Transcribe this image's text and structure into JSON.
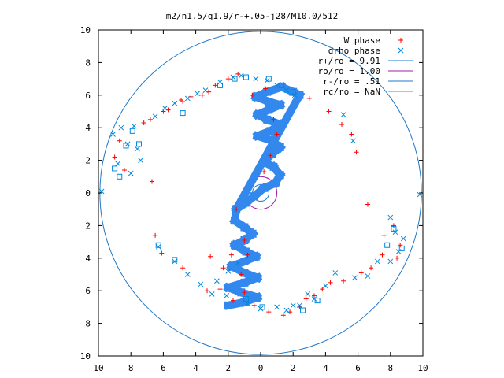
{
  "chart_data": {
    "type": "scatter",
    "title": "m2/n1.5/q1.9/r-+.05-j28/M10.0/512",
    "xlim": [
      -10,
      10
    ],
    "ylim": [
      -10,
      10
    ],
    "x_ticks": [
      -10,
      -8,
      -6,
      -4,
      -2,
      0,
      2,
      4,
      6,
      8,
      10
    ],
    "y_ticks": [
      -10,
      -8,
      -6,
      -4,
      -2,
      0,
      2,
      4,
      6,
      8,
      10
    ],
    "x_tick_labels": [
      "10",
      "8",
      "6",
      "4",
      "2",
      "0",
      "2",
      "4",
      "6",
      "8",
      "10"
    ],
    "y_tick_labels": [
      "10",
      "8",
      "6",
      "4",
      "2",
      "0",
      "2",
      "4",
      "6",
      "8",
      "10"
    ],
    "grid": false,
    "legend_position": "top-right",
    "colors": {
      "w_phase": "#ff0000",
      "drho_phase": "#0088dd",
      "r_plus": "#1e78c8",
      "r_o": "#a020a0",
      "r_minus": "#1e78c8",
      "r_c": "#00b0b0"
    },
    "legend": [
      {
        "label": "W phase",
        "marker": "plus",
        "color": "#ff0000"
      },
      {
        "label": "drho phase",
        "marker": "x",
        "color": "#0088dd"
      },
      {
        "label": "r+/ro = 9.91",
        "marker": "line",
        "color": "#1e78c8"
      },
      {
        "label": "ro/ro = 1.00",
        "marker": "line",
        "color": "#a020a0"
      },
      {
        "label": "r-/ro = .51",
        "marker": "line",
        "color": "#1e78c8"
      },
      {
        "label": "rc/ro = NaN",
        "marker": "line",
        "color": "#00b0b0"
      }
    ],
    "circles": [
      {
        "name": "r+/ro",
        "radius": 9.91
      },
      {
        "name": "ro/ro",
        "radius": 1.0
      },
      {
        "name": "r-/ro",
        "radius": 0.51
      }
    ],
    "series": [
      {
        "name": "W phase",
        "marker": "plus",
        "points": [
          [
            -6.7,
            0.7
          ],
          [
            -6.5,
            -2.6
          ],
          [
            -6.1,
            -3.7
          ],
          [
            -4.8,
            -4.6
          ],
          [
            -3.3,
            -6.0
          ],
          [
            -3.1,
            -3.9
          ],
          [
            -3.2,
            6.2
          ],
          [
            -6.0,
            5.0
          ],
          [
            -4.8,
            5.6
          ],
          [
            3.0,
            5.8
          ],
          [
            4.2,
            5.0
          ],
          [
            5.0,
            4.2
          ],
          [
            5.6,
            3.6
          ],
          [
            5.9,
            2.5
          ],
          [
            6.6,
            -0.7
          ],
          [
            2.8,
            -6.5
          ],
          [
            1.8,
            -7.3
          ],
          [
            5.1,
            -5.4
          ],
          [
            -0.5,
            6.0
          ],
          [
            0.3,
            6.4
          ],
          [
            0.8,
            4.5
          ],
          [
            1.0,
            3.6
          ],
          [
            0.6,
            2.3
          ],
          [
            0.2,
            1.3
          ],
          [
            -1.5,
            -1.0
          ],
          [
            -1.0,
            -2.9
          ],
          [
            -0.8,
            -3.8
          ],
          [
            -1.2,
            -5.0
          ],
          [
            -1.0,
            -6.1
          ],
          [
            -0.4,
            -6.9
          ],
          [
            -9.0,
            2.2
          ],
          [
            -8.7,
            3.2
          ],
          [
            -8.4,
            1.4
          ],
          [
            -7.2,
            4.3
          ],
          [
            -6.8,
            4.5
          ],
          [
            -5.7,
            5.1
          ],
          [
            -4.9,
            5.7
          ],
          [
            -4.3,
            5.9
          ],
          [
            -3.6,
            6.0
          ],
          [
            -2.8,
            6.6
          ],
          [
            -2.0,
            7.0
          ],
          [
            -1.4,
            7.3
          ],
          [
            7.6,
            -2.6
          ],
          [
            8.2,
            -2.0
          ],
          [
            8.6,
            -3.2
          ],
          [
            8.4,
            -4.0
          ],
          [
            7.5,
            -3.8
          ],
          [
            6.8,
            -4.6
          ],
          [
            6.2,
            -4.9
          ],
          [
            4.3,
            -5.5
          ],
          [
            3.8,
            -5.9
          ],
          [
            3.3,
            -6.3
          ],
          [
            2.4,
            -7.0
          ],
          [
            1.4,
            -7.5
          ],
          [
            0.5,
            -7.3
          ],
          [
            -1.7,
            -6.6
          ],
          [
            -2.5,
            -5.9
          ],
          [
            -2.3,
            -4.6
          ],
          [
            -1.8,
            -3.8
          ]
        ]
      },
      {
        "name": "drho phase",
        "marker": "x",
        "points": [
          [
            -6.3,
            -3.3
          ],
          [
            -5.3,
            -4.2
          ],
          [
            -4.5,
            -5.0
          ],
          [
            -3.7,
            -5.6
          ],
          [
            -3.0,
            -6.2
          ],
          [
            5.1,
            4.8
          ],
          [
            5.7,
            3.2
          ],
          [
            4.6,
            -4.9
          ],
          [
            3.3,
            -6.5
          ],
          [
            2.4,
            -6.9
          ],
          [
            1.6,
            -7.2
          ],
          [
            -9.8,
            0.1
          ],
          [
            9.8,
            -0.1
          ],
          [
            -9.1,
            3.6
          ],
          [
            -8.6,
            4.0
          ],
          [
            -8.2,
            3.0
          ],
          [
            -7.8,
            4.1
          ],
          [
            -7.6,
            2.7
          ],
          [
            -7.4,
            2.0
          ],
          [
            -8.8,
            1.8
          ],
          [
            -8.0,
            1.2
          ],
          [
            -6.5,
            4.7
          ],
          [
            -5.9,
            5.2
          ],
          [
            -5.3,
            5.5
          ],
          [
            -4.5,
            5.8
          ],
          [
            -3.9,
            6.1
          ],
          [
            -3.4,
            6.3
          ],
          [
            -2.5,
            6.8
          ],
          [
            -1.7,
            7.1
          ],
          [
            -1.2,
            7.2
          ],
          [
            -0.3,
            7.0
          ],
          [
            0.4,
            6.9
          ],
          [
            1.0,
            6.6
          ],
          [
            1.6,
            6.3
          ],
          [
            2.1,
            6.0
          ],
          [
            8.0,
            -1.5
          ],
          [
            8.3,
            -2.4
          ],
          [
            8.8,
            -2.8
          ],
          [
            8.5,
            -3.6
          ],
          [
            8.0,
            -4.2
          ],
          [
            7.2,
            -4.2
          ],
          [
            6.6,
            -5.1
          ],
          [
            5.8,
            -5.2
          ],
          [
            4.0,
            -5.7
          ],
          [
            2.9,
            -6.2
          ],
          [
            2.0,
            -6.9
          ],
          [
            1.0,
            -7.0
          ],
          [
            0.0,
            -7.1
          ],
          [
            -0.8,
            -6.8
          ],
          [
            -2.1,
            -6.3
          ],
          [
            -2.7,
            -5.4
          ],
          [
            -2.0,
            -4.8
          ],
          [
            -1.4,
            -4.3
          ]
        ]
      },
      {
        "name": "drho phase",
        "marker": "square",
        "points": [
          [
            -4.8,
            4.9
          ],
          [
            -2.5,
            6.6
          ],
          [
            -1.6,
            7.0
          ],
          [
            -0.9,
            7.1
          ],
          [
            0.5,
            7.0
          ],
          [
            1.3,
            6.6
          ],
          [
            2.0,
            6.2
          ],
          [
            -6.3,
            -3.2
          ],
          [
            -5.3,
            -4.1
          ],
          [
            -9.0,
            1.5
          ],
          [
            -8.7,
            1.0
          ],
          [
            -8.3,
            2.9
          ],
          [
            -7.5,
            3.0
          ],
          [
            -7.9,
            3.8
          ],
          [
            8.2,
            -2.2
          ],
          [
            8.7,
            -3.4
          ],
          [
            7.8,
            -3.2
          ],
          [
            0.1,
            -7.0
          ],
          [
            -0.9,
            -6.5
          ],
          [
            2.6,
            -7.2
          ],
          [
            3.5,
            -6.6
          ]
        ]
      }
    ],
    "spiral_band": {
      "name": "dense marker band",
      "color": "#3388ee",
      "points": [
        [
          -1.5,
          -1.0
        ],
        [
          -0.9,
          -0.6
        ],
        [
          -0.4,
          -0.2
        ],
        [
          0.2,
          0.3
        ],
        [
          0.9,
          0.6
        ],
        [
          1.2,
          1.1
        ],
        [
          0.8,
          1.6
        ],
        [
          0.2,
          1.9
        ],
        [
          0.7,
          2.4
        ],
        [
          1.2,
          2.8
        ],
        [
          0.7,
          3.2
        ],
        [
          -0.2,
          3.5
        ],
        [
          0.6,
          3.8
        ],
        [
          1.2,
          4.2
        ],
        [
          0.4,
          4.5
        ],
        [
          -0.2,
          4.8
        ],
        [
          0.5,
          5.1
        ],
        [
          1.2,
          5.4
        ],
        [
          0.5,
          5.6
        ],
        [
          -0.3,
          5.9
        ],
        [
          0.4,
          6.2
        ],
        [
          1.3,
          6.5
        ],
        [
          2.0,
          6.2
        ],
        [
          2.4,
          6.0
        ],
        [
          -1.5,
          -1.0
        ],
        [
          -1.6,
          -1.7
        ],
        [
          -1.0,
          -2.1
        ],
        [
          -0.5,
          -2.5
        ],
        [
          -1.0,
          -2.9
        ],
        [
          -1.6,
          -3.2
        ],
        [
          -0.9,
          -3.6
        ],
        [
          -0.3,
          -3.9
        ],
        [
          -1.0,
          -4.2
        ],
        [
          -1.8,
          -4.5
        ],
        [
          -1.0,
          -4.9
        ],
        [
          -0.2,
          -5.2
        ],
        [
          -1.0,
          -5.5
        ],
        [
          -2.0,
          -5.8
        ],
        [
          -1.2,
          -6.1
        ],
        [
          -0.2,
          -6.4
        ],
        [
          -1.0,
          -6.7
        ],
        [
          -2.0,
          -6.9
        ]
      ]
    }
  }
}
